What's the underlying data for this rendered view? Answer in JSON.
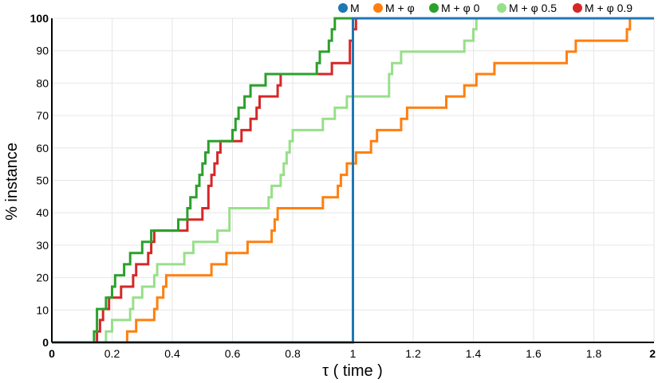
{
  "chart_data": {
    "type": "line",
    "step": true,
    "xlabel": "τ ( time )",
    "ylabel": "% instance",
    "xlim": [
      0,
      2
    ],
    "ylim": [
      0,
      100
    ],
    "xticks": [
      0,
      0.2,
      0.4,
      0.6,
      0.8,
      1,
      1.2,
      1.4,
      1.6,
      1.8,
      2
    ],
    "xtick_labels": [
      "0",
      "0.2",
      "0.4",
      "0.6",
      "0.8",
      "1",
      "1.2",
      "1.4",
      "1.6",
      "1.8",
      "2"
    ],
    "yticks": [
      0,
      10,
      20,
      30,
      40,
      50,
      60,
      70,
      80,
      90,
      100
    ],
    "ytick_labels": [
      "0",
      "10",
      "20",
      "30",
      "40",
      "50",
      "60",
      "70",
      "80",
      "90",
      "100"
    ],
    "grid": true,
    "legend_position": "top-right",
    "series": [
      {
        "name": "M",
        "color": "#1f77b4",
        "x": [
          0,
          1.0,
          1.0,
          2.0
        ],
        "y": [
          0,
          0,
          100,
          100
        ]
      },
      {
        "name": "M + φ",
        "color": "#ff7f0e",
        "x": [
          0,
          0.24,
          0.25,
          0.28,
          0.34,
          0.35,
          0.37,
          0.38,
          0.4,
          0.53,
          0.58,
          0.65,
          0.73,
          0.74,
          0.75,
          0.9,
          0.95,
          0.96,
          0.98,
          0.99,
          1.01,
          1.06,
          1.08,
          1.12,
          1.16,
          1.18,
          1.31,
          1.34,
          1.37,
          1.41,
          1.47,
          1.71,
          1.74,
          1.91,
          1.92,
          1.93,
          2.0
        ],
        "y": [
          0,
          0,
          3.4,
          6.9,
          10.3,
          13.8,
          17.2,
          20.7,
          20.7,
          24.1,
          27.6,
          31.0,
          34.5,
          37.9,
          41.4,
          44.8,
          48.3,
          51.7,
          55.2,
          55.2,
          58.6,
          62.1,
          65.5,
          65.5,
          69.0,
          72.4,
          75.9,
          75.9,
          79.3,
          82.8,
          86.2,
          89.7,
          93.1,
          96.6,
          100,
          100,
          100
        ]
      },
      {
        "name": "M + φ 0",
        "color": "#2ca02c",
        "x": [
          0,
          0.13,
          0.14,
          0.15,
          0.18,
          0.2,
          0.21,
          0.23,
          0.24,
          0.26,
          0.3,
          0.31,
          0.33,
          0.42,
          0.45,
          0.46,
          0.48,
          0.49,
          0.5,
          0.51,
          0.52,
          0.53,
          0.6,
          0.61,
          0.62,
          0.64,
          0.66,
          0.71,
          0.76,
          0.88,
          0.89,
          0.92,
          0.93,
          0.94,
          0.95,
          2.0
        ],
        "y": [
          0,
          0,
          3.4,
          10.3,
          13.8,
          17.2,
          20.7,
          20.7,
          24.1,
          27.6,
          31.0,
          31.0,
          34.5,
          37.9,
          41.4,
          44.8,
          48.3,
          51.7,
          55.2,
          58.6,
          62.1,
          62.1,
          65.5,
          69.0,
          72.4,
          75.9,
          79.3,
          82.8,
          82.8,
          86.2,
          89.7,
          93.1,
          96.6,
          100,
          100,
          100
        ]
      },
      {
        "name": "M + φ 0.5",
        "color": "#98df8a",
        "x": [
          0,
          0.17,
          0.18,
          0.2,
          0.26,
          0.27,
          0.3,
          0.34,
          0.35,
          0.44,
          0.47,
          0.55,
          0.59,
          0.72,
          0.73,
          0.76,
          0.77,
          0.78,
          0.79,
          0.8,
          0.9,
          0.94,
          0.98,
          1.04,
          1.12,
          1.13,
          1.15,
          1.16,
          1.37,
          1.4,
          1.41,
          1.42,
          2.0
        ],
        "y": [
          0,
          0,
          3.4,
          6.9,
          10.3,
          13.8,
          17.2,
          20.7,
          24.1,
          27.6,
          31.0,
          34.5,
          41.4,
          44.8,
          48.3,
          51.7,
          55.2,
          58.6,
          62.1,
          65.5,
          69.0,
          72.4,
          75.9,
          75.9,
          82.8,
          86.2,
          86.2,
          89.7,
          93.1,
          96.6,
          100,
          100,
          100
        ]
      },
      {
        "name": "M + φ 0.9",
        "color": "#d62728",
        "x": [
          0,
          0.14,
          0.15,
          0.16,
          0.17,
          0.19,
          0.2,
          0.23,
          0.27,
          0.28,
          0.32,
          0.33,
          0.34,
          0.38,
          0.45,
          0.5,
          0.52,
          0.53,
          0.54,
          0.55,
          0.56,
          0.59,
          0.63,
          0.66,
          0.68,
          0.69,
          0.7,
          0.75,
          0.76,
          0.77,
          0.93,
          0.99,
          1.0,
          1.01,
          1.02,
          2.0
        ],
        "y": [
          0,
          0,
          3.4,
          6.9,
          10.3,
          13.8,
          13.8,
          17.2,
          20.7,
          24.1,
          27.6,
          31.0,
          34.5,
          34.5,
          37.9,
          41.4,
          48.3,
          51.7,
          55.2,
          58.6,
          62.1,
          62.1,
          65.5,
          69.0,
          72.4,
          75.9,
          75.9,
          79.3,
          82.8,
          82.8,
          86.2,
          93.1,
          96.6,
          100,
          100,
          100
        ]
      }
    ]
  }
}
